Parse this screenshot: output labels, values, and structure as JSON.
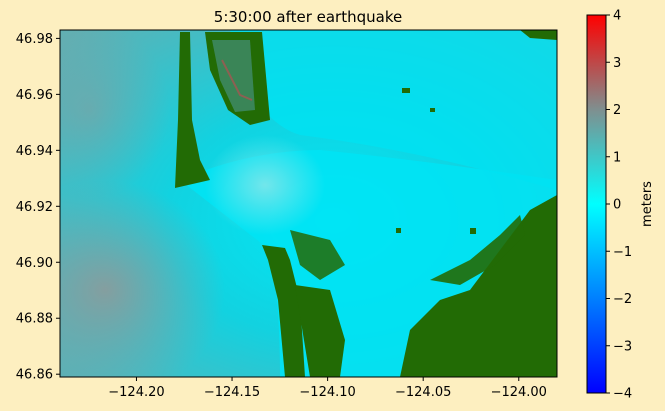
{
  "chart_data": {
    "type": "heatmap",
    "title": "5:30:00 after earthquake",
    "xlabel": "",
    "ylabel": "",
    "xlim": [
      -124.24,
      -123.98
    ],
    "ylim": [
      46.859,
      46.983
    ],
    "xticks": [
      -124.2,
      -124.15,
      -124.1,
      -124.05,
      -124.0
    ],
    "xtick_labels": [
      "−124.20",
      "−124.15",
      "−124.10",
      "−124.05",
      "−124.00"
    ],
    "yticks": [
      46.86,
      46.88,
      46.9,
      46.92,
      46.94,
      46.96,
      46.98
    ],
    "ytick_labels": [
      "46.86",
      "46.88",
      "46.90",
      "46.92",
      "46.94",
      "46.96",
      "46.98"
    ],
    "colorbar": {
      "label": "meters",
      "range": [
        -4,
        4
      ],
      "ticks": [
        4,
        3,
        2,
        1,
        0,
        -1,
        -2,
        -3,
        -4
      ],
      "tick_labels": [
        "4",
        "3",
        "2",
        "1",
        "0",
        "−1",
        "−2",
        "−3",
        "−4"
      ],
      "colors": [
        "#0000ff",
        "#00ffff",
        "#ff0000"
      ]
    },
    "land_color": "#226b05",
    "grid": false
  }
}
